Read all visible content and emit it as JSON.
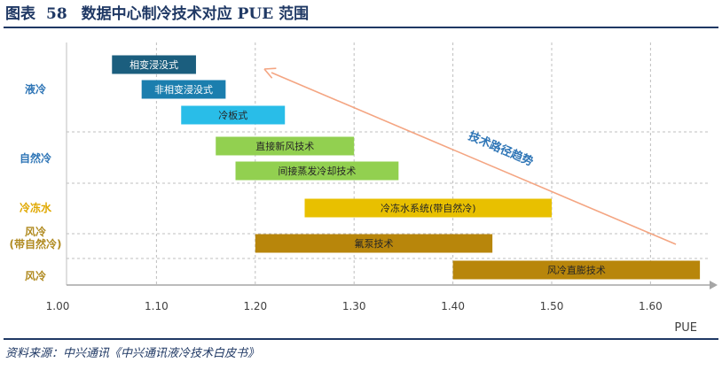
{
  "header": {
    "figure_label": "图表",
    "figure_number": "58",
    "title": "数据中心制冷技术对应 PUE 范围"
  },
  "source": "资料来源：中兴通讯《中兴通讯液冷技术白皮书》",
  "colors": {
    "title": "#1f3864",
    "category_label": "#2e75b6",
    "category_label_yellow": "#e0a800",
    "category_label_brown": "#b08a20",
    "arrow": "#f4a582",
    "arrow_label": "#2e75b6",
    "grid": "#bfbfbf"
  },
  "chart_data": {
    "type": "bar",
    "subtype": "floating-horizontal-range",
    "xlabel": "PUE",
    "xlim": [
      1.0,
      1.65
    ],
    "x_ticks": [
      "1.00",
      "1.10",
      "1.20",
      "1.30",
      "1.40",
      "1.50",
      "1.60"
    ],
    "grid": "vertical dashed",
    "groups": [
      {
        "label": "液冷",
        "color_key": "category_label"
      },
      {
        "label": "自然冷",
        "color_key": "category_label"
      },
      {
        "label": "冷冻水",
        "color_key": "category_label_yellow"
      },
      {
        "label": "风冷\n(带自然冷)",
        "color_key": "category_label_brown"
      },
      {
        "label": "风冷",
        "color_key": "category_label_brown"
      }
    ],
    "bars": [
      {
        "label": "相变浸没式",
        "group": 0,
        "start": 1.055,
        "end": 1.14,
        "color": "#1b5e7e"
      },
      {
        "label": "非相变浸没式",
        "group": 0,
        "start": 1.085,
        "end": 1.17,
        "color": "#1b7eae"
      },
      {
        "label": "冷板式",
        "group": 0,
        "start": 1.125,
        "end": 1.23,
        "color": "#29bde8"
      },
      {
        "label": "直接新风技术",
        "group": 1,
        "start": 1.16,
        "end": 1.3,
        "color": "#92d050"
      },
      {
        "label": "间接蒸发冷却技术",
        "group": 1,
        "start": 1.18,
        "end": 1.345,
        "color": "#92d050"
      },
      {
        "label": "冷冻水系统(带自然冷)",
        "group": 2,
        "start": 1.25,
        "end": 1.5,
        "color": "#e8c000"
      },
      {
        "label": "氟泵技术",
        "group": 3,
        "start": 1.2,
        "end": 1.44,
        "color": "#b8860b"
      },
      {
        "label": "风冷直膨技术",
        "group": 4,
        "start": 1.4,
        "end": 1.65,
        "color": "#b8860b"
      }
    ],
    "annotation": {
      "text": "技术路径趋势",
      "arrow_from": [
        1.64,
        5.5
      ],
      "arrow_to": [
        1.2,
        0.4
      ]
    }
  }
}
